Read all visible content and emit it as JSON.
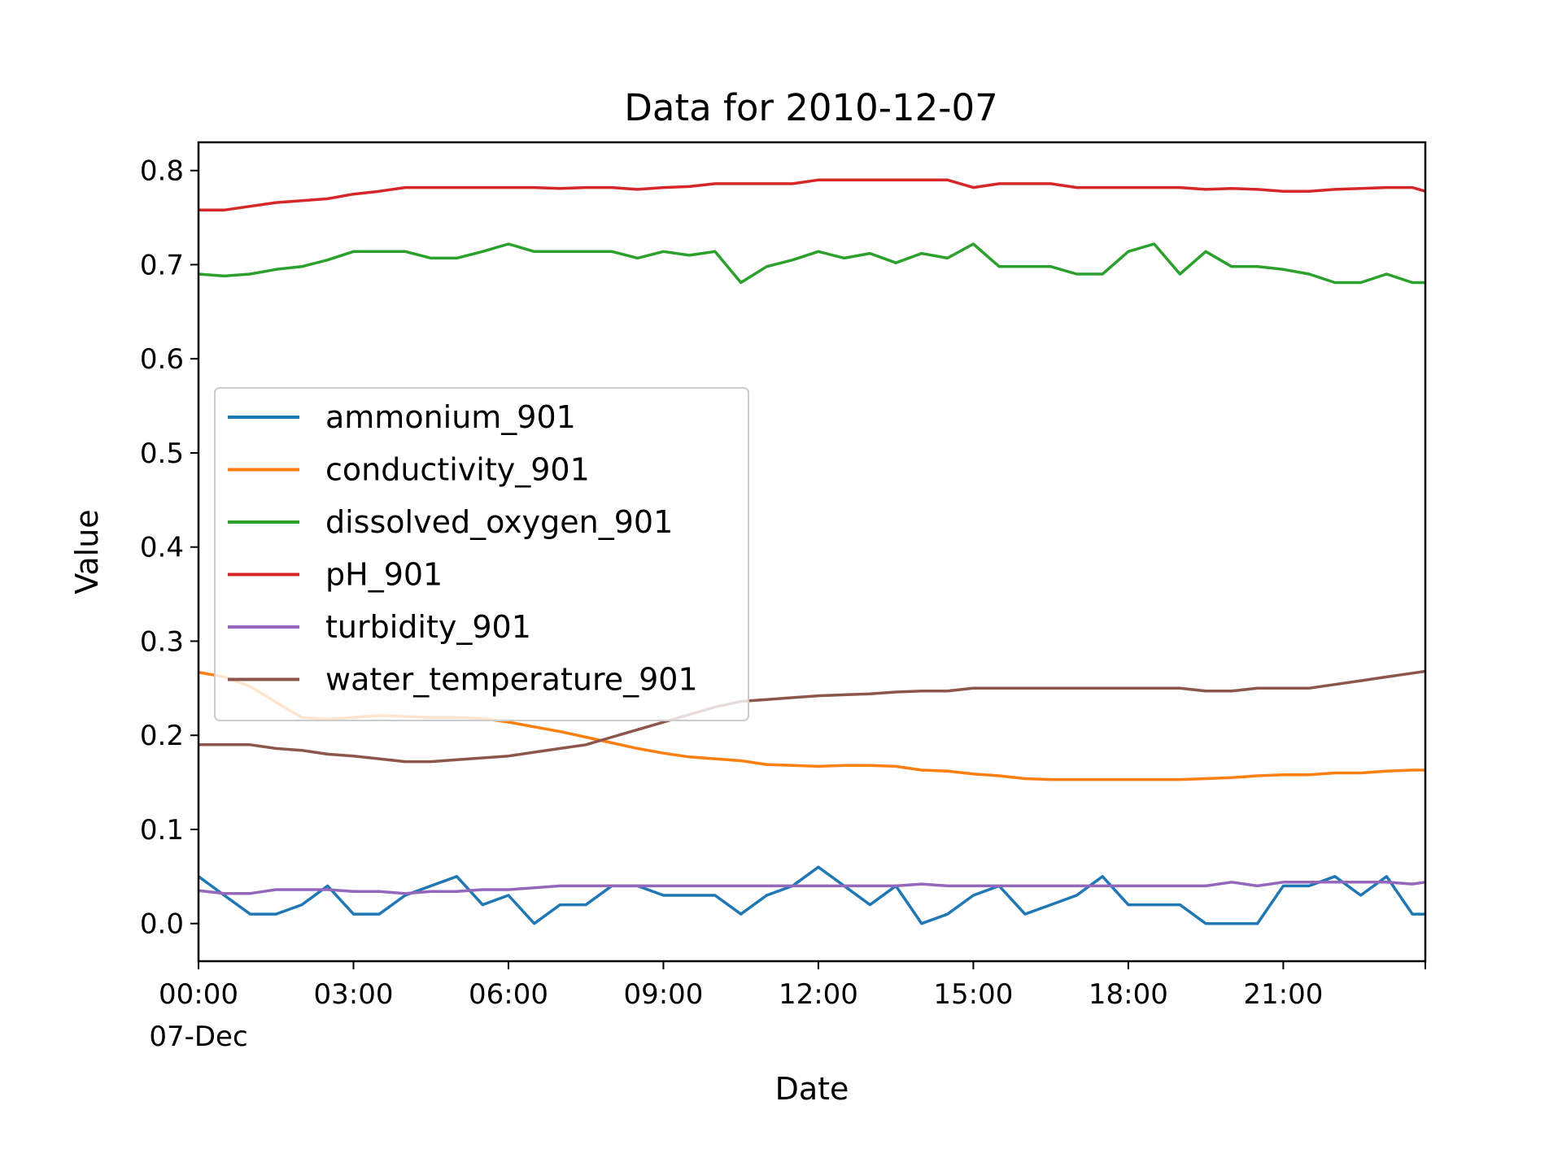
{
  "chart_data": {
    "type": "line",
    "title": "Data for 2010-12-07",
    "xlabel": "Date",
    "ylabel": "Value",
    "xlim": [
      "2010-12-07 00:00",
      "2010-12-07 23:45"
    ],
    "ylim": [
      -0.04,
      0.83
    ],
    "x_ticks": [
      {
        "at": "2010-12-07 00:00",
        "label": "00:00",
        "sublabel": "07-Dec"
      },
      {
        "at": "2010-12-07 03:00",
        "label": "03:00"
      },
      {
        "at": "2010-12-07 06:00",
        "label": "06:00"
      },
      {
        "at": "2010-12-07 09:00",
        "label": "09:00"
      },
      {
        "at": "2010-12-07 12:00",
        "label": "12:00"
      },
      {
        "at": "2010-12-07 15:00",
        "label": "15:00"
      },
      {
        "at": "2010-12-07 18:00",
        "label": "18:00"
      },
      {
        "at": "2010-12-07 21:00",
        "label": "21:00"
      }
    ],
    "y_ticks": [
      0.0,
      0.1,
      0.2,
      0.3,
      0.4,
      0.5,
      0.6,
      0.7,
      0.8
    ],
    "y_tick_labels": [
      "0.0",
      "0.1",
      "0.2",
      "0.3",
      "0.4",
      "0.5",
      "0.6",
      "0.7",
      "0.8"
    ],
    "grid": false,
    "legend_position": "center-left",
    "x": [
      "2010-12-07 00:00",
      "2010-12-07 00:30",
      "2010-12-07 01:00",
      "2010-12-07 01:30",
      "2010-12-07 02:00",
      "2010-12-07 02:30",
      "2010-12-07 03:00",
      "2010-12-07 03:30",
      "2010-12-07 04:00",
      "2010-12-07 04:30",
      "2010-12-07 05:00",
      "2010-12-07 05:30",
      "2010-12-07 06:00",
      "2010-12-07 06:30",
      "2010-12-07 07:00",
      "2010-12-07 07:30",
      "2010-12-07 08:00",
      "2010-12-07 08:30",
      "2010-12-07 09:00",
      "2010-12-07 09:30",
      "2010-12-07 10:00",
      "2010-12-07 10:30",
      "2010-12-07 11:00",
      "2010-12-07 11:30",
      "2010-12-07 12:00",
      "2010-12-07 12:30",
      "2010-12-07 13:00",
      "2010-12-07 13:30",
      "2010-12-07 14:00",
      "2010-12-07 14:30",
      "2010-12-07 15:00",
      "2010-12-07 15:30",
      "2010-12-07 16:00",
      "2010-12-07 16:30",
      "2010-12-07 17:00",
      "2010-12-07 17:30",
      "2010-12-07 18:00",
      "2010-12-07 18:30",
      "2010-12-07 19:00",
      "2010-12-07 19:30",
      "2010-12-07 20:00",
      "2010-12-07 20:30",
      "2010-12-07 21:00",
      "2010-12-07 21:30",
      "2010-12-07 22:00",
      "2010-12-07 22:30",
      "2010-12-07 23:00",
      "2010-12-07 23:30",
      "2010-12-07 23:45"
    ],
    "series": [
      {
        "name": "ammonium_901",
        "color": "#1f77b4",
        "values": [
          0.05,
          0.03,
          0.01,
          0.01,
          0.02,
          0.04,
          0.01,
          0.01,
          0.03,
          0.04,
          0.05,
          0.02,
          0.03,
          0.0,
          0.02,
          0.02,
          0.04,
          0.04,
          0.03,
          0.03,
          0.03,
          0.01,
          0.03,
          0.04,
          0.06,
          0.04,
          0.02,
          0.04,
          0.0,
          0.01,
          0.03,
          0.04,
          0.01,
          0.02,
          0.03,
          0.05,
          0.02,
          0.02,
          0.02,
          0.0,
          0.0,
          0.0,
          0.04,
          0.04,
          0.05,
          0.03,
          0.05,
          0.01,
          0.01
        ]
      },
      {
        "name": "conductivity_901",
        "color": "#ff7f0e",
        "values": [
          0.267,
          0.262,
          0.252,
          0.235,
          0.219,
          0.217,
          0.219,
          0.221,
          0.22,
          0.219,
          0.219,
          0.218,
          0.214,
          0.209,
          0.204,
          0.198,
          0.192,
          0.186,
          0.181,
          0.177,
          0.175,
          0.173,
          0.169,
          0.168,
          0.167,
          0.168,
          0.168,
          0.167,
          0.163,
          0.162,
          0.159,
          0.157,
          0.154,
          0.153,
          0.153,
          0.153,
          0.153,
          0.153,
          0.153,
          0.154,
          0.155,
          0.157,
          0.158,
          0.158,
          0.16,
          0.16,
          0.162,
          0.163,
          0.163
        ]
      },
      {
        "name": "dissolved_oxygen_901",
        "color": "#2ca02c",
        "values": [
          0.69,
          0.688,
          0.69,
          0.695,
          0.698,
          0.705,
          0.714,
          0.714,
          0.714,
          0.707,
          0.707,
          0.714,
          0.722,
          0.714,
          0.714,
          0.714,
          0.714,
          0.707,
          0.714,
          0.71,
          0.714,
          0.681,
          0.698,
          0.705,
          0.714,
          0.707,
          0.712,
          0.702,
          0.712,
          0.707,
          0.722,
          0.698,
          0.698,
          0.698,
          0.69,
          0.69,
          0.714,
          0.722,
          0.69,
          0.714,
          0.698,
          0.698,
          0.695,
          0.69,
          0.681,
          0.681,
          0.69,
          0.681,
          0.681
        ]
      },
      {
        "name": "pH_901",
        "color": "#d62728",
        "values": [
          0.758,
          0.758,
          0.762,
          0.766,
          0.768,
          0.77,
          0.775,
          0.778,
          0.782,
          0.782,
          0.782,
          0.782,
          0.782,
          0.782,
          0.781,
          0.782,
          0.782,
          0.78,
          0.782,
          0.783,
          0.786,
          0.786,
          0.786,
          0.786,
          0.79,
          0.79,
          0.79,
          0.79,
          0.79,
          0.79,
          0.782,
          0.786,
          0.786,
          0.786,
          0.782,
          0.782,
          0.782,
          0.782,
          0.782,
          0.78,
          0.781,
          0.78,
          0.778,
          0.778,
          0.78,
          0.781,
          0.782,
          0.782,
          0.778
        ]
      },
      {
        "name": "turbidity_901",
        "color": "#9467bd",
        "values": [
          0.035,
          0.032,
          0.032,
          0.036,
          0.036,
          0.036,
          0.034,
          0.034,
          0.032,
          0.034,
          0.034,
          0.036,
          0.036,
          0.038,
          0.04,
          0.04,
          0.04,
          0.04,
          0.04,
          0.04,
          0.04,
          0.04,
          0.04,
          0.04,
          0.04,
          0.04,
          0.04,
          0.04,
          0.042,
          0.04,
          0.04,
          0.04,
          0.04,
          0.04,
          0.04,
          0.04,
          0.04,
          0.04,
          0.04,
          0.04,
          0.044,
          0.04,
          0.044,
          0.044,
          0.044,
          0.044,
          0.044,
          0.042,
          0.044
        ]
      },
      {
        "name": "water_temperature_901",
        "color": "#8c564b",
        "values": [
          0.19,
          0.19,
          0.19,
          0.186,
          0.184,
          0.18,
          0.178,
          0.175,
          0.172,
          0.172,
          0.174,
          0.176,
          0.178,
          0.182,
          0.186,
          0.19,
          0.198,
          0.206,
          0.214,
          0.222,
          0.23,
          0.236,
          0.238,
          0.24,
          0.242,
          0.243,
          0.244,
          0.246,
          0.247,
          0.247,
          0.25,
          0.25,
          0.25,
          0.25,
          0.25,
          0.25,
          0.25,
          0.25,
          0.25,
          0.247,
          0.247,
          0.25,
          0.25,
          0.25,
          0.254,
          0.258,
          0.262,
          0.266,
          0.268
        ]
      }
    ]
  }
}
